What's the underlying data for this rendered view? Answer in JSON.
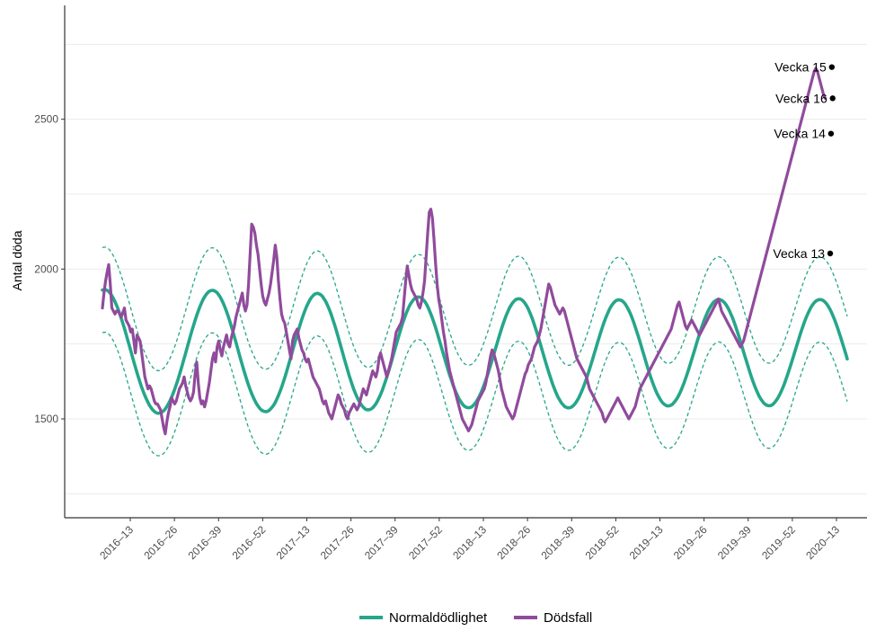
{
  "chart_data": {
    "type": "line",
    "xlabel": "",
    "ylabel": "Antal döda",
    "x_start": "2016-01",
    "y_ticks": [
      1500,
      2000,
      2500
    ],
    "ylim": [
      1170,
      2880
    ],
    "x_ticks": [
      "2016–13",
      "2016–26",
      "2016–39",
      "2016–52",
      "2017–13",
      "2017–26",
      "2017–39",
      "2017–52",
      "2018–13",
      "2018–26",
      "2018–39",
      "2018–52",
      "2019–13",
      "2019–26",
      "2019–39",
      "2019–52",
      "2020–13"
    ],
    "grid": true,
    "legend_position": "bottom",
    "series": [
      {
        "name": "Normaldödlighet",
        "color": "#26a68a",
        "values": [
          1930,
          1931,
          1931,
          1929,
          1925,
          1919,
          1911,
          1902,
          1891,
          1879,
          1866,
          1851,
          1835,
          1819,
          1802,
          1784,
          1765,
          1747,
          1728,
          1709,
          1690,
          1672,
          1654,
          1637,
          1621,
          1605,
          1591,
          1578,
          1566,
          1555,
          1545,
          1537,
          1530,
          1525,
          1521,
          1519,
          1519,
          1520,
          1523,
          1527,
          1533,
          1541,
          1550,
          1560,
          1572,
          1585,
          1599,
          1614,
          1630,
          1647,
          1665,
          1683,
          1702,
          1720,
          1739,
          1758,
          1777,
          1795,
          1812,
          1829,
          1845,
          1860,
          1874,
          1886,
          1898,
          1907,
          1915,
          1921,
          1926,
          1928,
          1929,
          1928,
          1925,
          1921,
          1914,
          1906,
          1896,
          1885,
          1872,
          1858,
          1843,
          1827,
          1810,
          1792,
          1773,
          1755,
          1736,
          1717,
          1698,
          1680,
          1662,
          1645,
          1628,
          1612,
          1598,
          1584,
          1572,
          1561,
          1551,
          1543,
          1536,
          1530,
          1527,
          1525,
          1524,
          1525,
          1528,
          1533,
          1539,
          1546,
          1555,
          1566,
          1578,
          1591,
          1605,
          1621,
          1637,
          1654,
          1672,
          1690,
          1708,
          1727,
          1746,
          1764,
          1783,
          1800,
          1818,
          1834,
          1849,
          1863,
          1876,
          1887,
          1897,
          1905,
          1911,
          1916,
          1918,
          1919,
          1917,
          1914,
          1909,
          1901,
          1893,
          1882,
          1870,
          1857,
          1842,
          1826,
          1810,
          1792,
          1774,
          1755,
          1737,
          1718,
          1699,
          1681,
          1663,
          1645,
          1629,
          1613,
          1598,
          1585,
          1573,
          1562,
          1553,
          1545,
          1539,
          1534,
          1531,
          1530,
          1531,
          1533,
          1537,
          1543,
          1550,
          1559,
          1570,
          1581,
          1594,
          1609,
          1624,
          1640,
          1657,
          1674,
          1692,
          1711,
          1729,
          1748,
          1766,
          1784,
          1801,
          1818,
          1833,
          1848,
          1861,
          1873,
          1883,
          1891,
          1898,
          1903,
          1906,
          1907,
          1906,
          1904,
          1899,
          1893,
          1885,
          1875,
          1863,
          1850,
          1836,
          1821,
          1805,
          1788,
          1770,
          1752,
          1734,
          1716,
          1698,
          1680,
          1663,
          1646,
          1631,
          1615,
          1601,
          1588,
          1577,
          1566,
          1558,
          1550,
          1544,
          1540,
          1538,
          1537,
          1538,
          1540,
          1545,
          1551,
          1558,
          1567,
          1577,
          1588,
          1601,
          1615,
          1630,
          1645,
          1662,
          1679,
          1696,
          1714,
          1732,
          1749,
          1767,
          1784,
          1801,
          1817,
          1832,
          1846,
          1858,
          1870,
          1879,
          1887,
          1893,
          1898,
          1900,
          1901,
          1900,
          1897,
          1892,
          1885,
          1877,
          1867,
          1855,
          1842,
          1828,
          1812,
          1796,
          1779,
          1762,
          1744,
          1726,
          1708,
          1690,
          1673,
          1656,
          1640,
          1624,
          1609,
          1596,
          1583,
          1572,
          1563,
          1554,
          1548,
          1542,
          1539,
          1537,
          1537,
          1538,
          1541,
          1546,
          1552,
          1560,
          1569,
          1580,
          1592,
          1605,
          1619,
          1634,
          1650,
          1666,
          1683,
          1700,
          1718,
          1735,
          1753,
          1770,
          1787,
          1803,
          1819,
          1833,
          1846,
          1858,
          1869,
          1878,
          1885,
          1891,
          1895,
          1897,
          1897,
          1896,
          1893,
          1888,
          1881,
          1872,
          1862,
          1851,
          1838,
          1824,
          1808,
          1792,
          1776,
          1759,
          1741,
          1723,
          1706,
          1688,
          1671,
          1654,
          1638,
          1623,
          1609,
          1596,
          1584,
          1574,
          1565,
          1557,
          1551,
          1547,
          1544,
          1543,
          1544,
          1546,
          1550,
          1556,
          1563,
          1571,
          1581,
          1592,
          1605,
          1618,
          1633,
          1648,
          1664,
          1681,
          1698,
          1715,
          1732,
          1750,
          1767,
          1783,
          1800,
          1815,
          1830,
          1843,
          1855,
          1866,
          1875,
          1883,
          1890,
          1894,
          1897,
          1899,
          1898,
          1896,
          1892,
          1887,
          1880,
          1871,
          1861,
          1849,
          1837,
          1823,
          1808,
          1792,
          1776,
          1759,
          1742,
          1724,
          1707,
          1690,
          1673,
          1656,
          1640,
          1625,
          1611,
          1598,
          1586,
          1575,
          1566,
          1559,
          1552,
          1548,
          1545,
          1544,
          1544,
          1546,
          1550,
          1556,
          1563,
          1571,
          1581,
          1592,
          1604,
          1617,
          1632,
          1647,
          1663,
          1679,
          1696,
          1713,
          1730,
          1747,
          1764,
          1781,
          1797,
          1812,
          1827,
          1840,
          1852,
          1863,
          1873,
          1881,
          1888,
          1893,
          1896,
          1898,
          1898,
          1897,
          1894,
          1889,
          1883,
          1875,
          1866,
          1855,
          1843,
          1830,
          1816,
          1801,
          1785,
          1769,
          1752,
          1735,
          1718,
          1700
        ]
      },
      {
        "name": "Dödsfall",
        "color": "#904b9c",
        "values": [
          1870,
          1920,
          1960,
          1990,
          2015,
          1950,
          1870,
          1860,
          1850,
          1860,
          1860,
          1850,
          1840,
          1855,
          1870,
          1830,
          1820,
          1810,
          1790,
          1800,
          1760,
          1720,
          1780,
          1770,
          1760,
          1720,
          1680,
          1640,
          1620,
          1600,
          1610,
          1600,
          1580,
          1560,
          1550,
          1550,
          1540,
          1530,
          1500,
          1470,
          1450,
          1490,
          1520,
          1540,
          1570,
          1560,
          1550,
          1560,
          1580,
          1600,
          1610,
          1620,
          1640,
          1610,
          1590,
          1570,
          1560,
          1570,
          1590,
          1650,
          1690,
          1620,
          1570,
          1550,
          1560,
          1540,
          1560,
          1590,
          1620,
          1660,
          1700,
          1720,
          1690,
          1740,
          1760,
          1730,
          1710,
          1740,
          1760,
          1780,
          1750,
          1740,
          1770,
          1790,
          1810,
          1840,
          1860,
          1880,
          1900,
          1920,
          1880,
          1860,
          1880,
          1950,
          2050,
          2150,
          2140,
          2120,
          2080,
          2050,
          2000,
          1950,
          1910,
          1890,
          1880,
          1900,
          1920,
          1950,
          1990,
          2030,
          2080,
          2040,
          1960,
          1900,
          1850,
          1830,
          1820,
          1790,
          1760,
          1730,
          1700,
          1760,
          1780,
          1790,
          1800,
          1770,
          1750,
          1730,
          1720,
          1700,
          1690,
          1700,
          1680,
          1660,
          1640,
          1630,
          1620,
          1610,
          1600,
          1580,
          1560,
          1550,
          1560,
          1540,
          1520,
          1510,
          1500,
          1520,
          1540,
          1560,
          1580,
          1570,
          1550,
          1540,
          1530,
          1510,
          1500,
          1520,
          1530,
          1540,
          1550,
          1540,
          1530,
          1540,
          1560,
          1580,
          1600,
          1590,
          1580,
          1600,
          1620,
          1640,
          1660,
          1650,
          1640,
          1660,
          1700,
          1720,
          1700,
          1680,
          1660,
          1640,
          1660,
          1680,
          1700,
          1730,
          1760,
          1790,
          1800,
          1810,
          1820,
          1840,
          1900,
          1960,
          2010,
          1980,
          1950,
          1930,
          1920,
          1910,
          1900,
          1880,
          1870,
          1890,
          1920,
          1960,
          2040,
          2120,
          2190,
          2200,
          2170,
          2100,
          2020,
          1950,
          1900,
          1870,
          1830,
          1790,
          1760,
          1720,
          1690,
          1660,
          1640,
          1620,
          1600,
          1580,
          1560,
          1540,
          1520,
          1500,
          1490,
          1480,
          1470,
          1460,
          1470,
          1480,
          1500,
          1520,
          1540,
          1560,
          1570,
          1580,
          1590,
          1600,
          1620,
          1650,
          1680,
          1710,
          1730,
          1720,
          1700,
          1680,
          1660,
          1630,
          1600,
          1580,
          1560,
          1540,
          1530,
          1520,
          1510,
          1500,
          1510,
          1530,
          1550,
          1570,
          1590,
          1610,
          1630,
          1650,
          1660,
          1680,
          1690,
          1700,
          1720,
          1740,
          1750,
          1760,
          1780,
          1800,
          1830,
          1860,
          1890,
          1920,
          1950,
          1940,
          1920,
          1900,
          1880,
          1870,
          1860,
          1850,
          1860,
          1870,
          1860,
          1840,
          1820,
          1800,
          1780,
          1760,
          1740,
          1720,
          1700,
          1690,
          1680,
          1670,
          1660,
          1650,
          1640,
          1620,
          1600,
          1590,
          1580,
          1570,
          1560,
          1550,
          1540,
          1530,
          1520,
          1500,
          1490,
          1500,
          1510,
          1520,
          1530,
          1540,
          1550,
          1560,
          1570,
          1560,
          1550,
          1540,
          1530,
          1520,
          1510,
          1500,
          1510,
          1520,
          1530,
          1540,
          1560,
          1580,
          1600,
          1610,
          1620,
          1630,
          1640,
          1650,
          1660,
          1670,
          1680,
          1690,
          1700,
          1710,
          1720,
          1730,
          1740,
          1750,
          1760,
          1770,
          1780,
          1790,
          1800,
          1820,
          1840,
          1860,
          1880,
          1890,
          1870,
          1850,
          1830,
          1810,
          1800,
          1810,
          1820,
          1830,
          1820,
          1810,
          1800,
          1790,
          1780,
          1790,
          1800,
          1810,
          1820,
          1830,
          1840,
          1850,
          1860,
          1870,
          1880,
          1890,
          1900,
          1880,
          1860,
          1850,
          1840,
          1830,
          1820,
          1810,
          1800,
          1790,
          1780,
          1770,
          1760,
          1750,
          1740,
          1750,
          1760,
          1780,
          1800,
          1820,
          1840,
          1860,
          1880,
          1900,
          1920,
          1940,
          1960,
          1980,
          2000,
          2020,
          2040,
          2060,
          2080,
          2100,
          2120,
          2140,
          2160,
          2180,
          2200,
          2220,
          2240,
          2260,
          2280,
          2300,
          2320,
          2340,
          2360,
          2380,
          2400,
          2420,
          2440,
          2460,
          2480,
          2500,
          2520,
          2540,
          2560,
          2580,
          2600,
          2620,
          2640,
          2660,
          2670,
          2660,
          2640,
          2620,
          2600,
          2580,
          2570
        ]
      }
    ],
    "annotations": [
      {
        "label": "Vecka 13",
        "x_index": 0.9771,
        "y": 2052
      },
      {
        "label": "Vecka 14",
        "x_index": 0.9782,
        "y": 2452
      },
      {
        "label": "Vecka 15",
        "x_index": 0.9793,
        "y": 2674
      },
      {
        "label": "Vecka 16",
        "x_index": 0.9804,
        "y": 2570
      }
    ]
  }
}
